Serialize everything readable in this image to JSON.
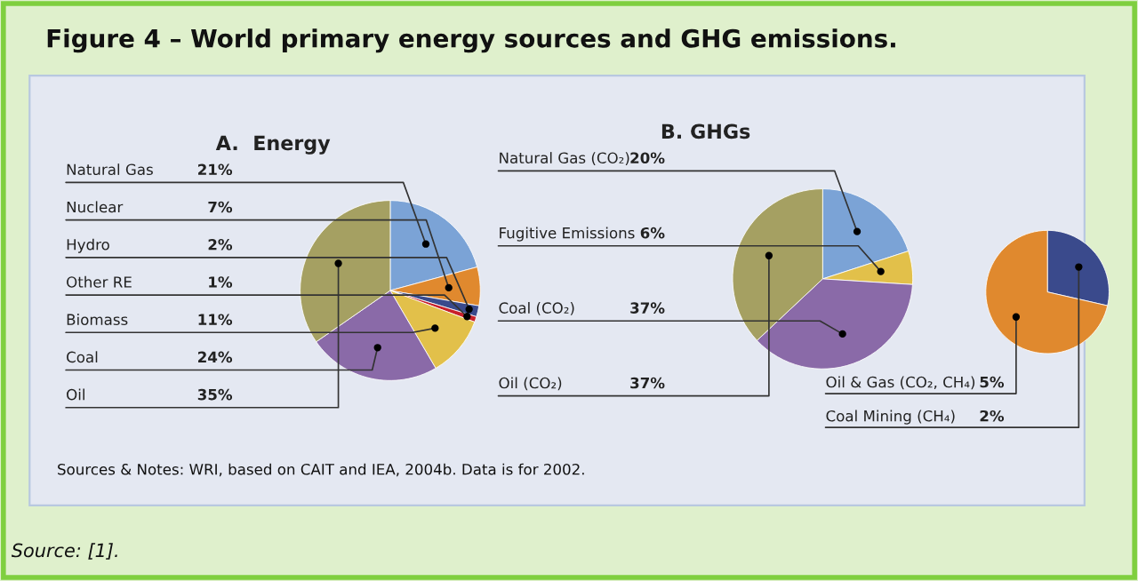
{
  "chart_data": [
    {
      "type": "pie",
      "title": "A.  Energy",
      "categories": [
        "Natural Gas",
        "Nuclear",
        "Hydro",
        "Other RE",
        "Biomass",
        "Coal",
        "Oil"
      ],
      "values": [
        21,
        7,
        2,
        1,
        11,
        24,
        35
      ],
      "value_labels": [
        "21%",
        "7%",
        "2%",
        "1%",
        "11%",
        "24%",
        "35%"
      ],
      "colors": [
        "#7ba3d6",
        "#e0892e",
        "#3a4a8c",
        "#c8202a",
        "#e2c04a",
        "#8a6aa8",
        "#a5a062"
      ],
      "annotations": [
        "Figure 4 – World primary energy sources and GHG emissions.",
        "Sources & Notes: WRI, based on CAIT and IEA, 2004b. Data is for 2002.",
        "Source: [1]."
      ]
    },
    {
      "type": "pie",
      "title": "B. GHGs",
      "categories": [
        "Natural Gas (CO₂)",
        "Fugitive Emissions",
        "Coal (CO₂)",
        "Oil (CO₂)"
      ],
      "values": [
        20,
        6,
        37,
        37
      ],
      "value_labels": [
        "20%",
        "6%",
        "37%",
        "37%"
      ],
      "colors": [
        "#7ba3d6",
        "#e2c04a",
        "#8a6aa8",
        "#a5a062"
      ]
    },
    {
      "type": "pie",
      "categories": [
        "Coal Mining (CH₄)",
        "Oil & Gas (CO₂, CH₄)"
      ],
      "values": [
        2,
        5
      ],
      "value_labels": [
        "2%",
        "5%"
      ],
      "colors": [
        "#3a4a8c",
        "#e0892e"
      ]
    }
  ]
}
